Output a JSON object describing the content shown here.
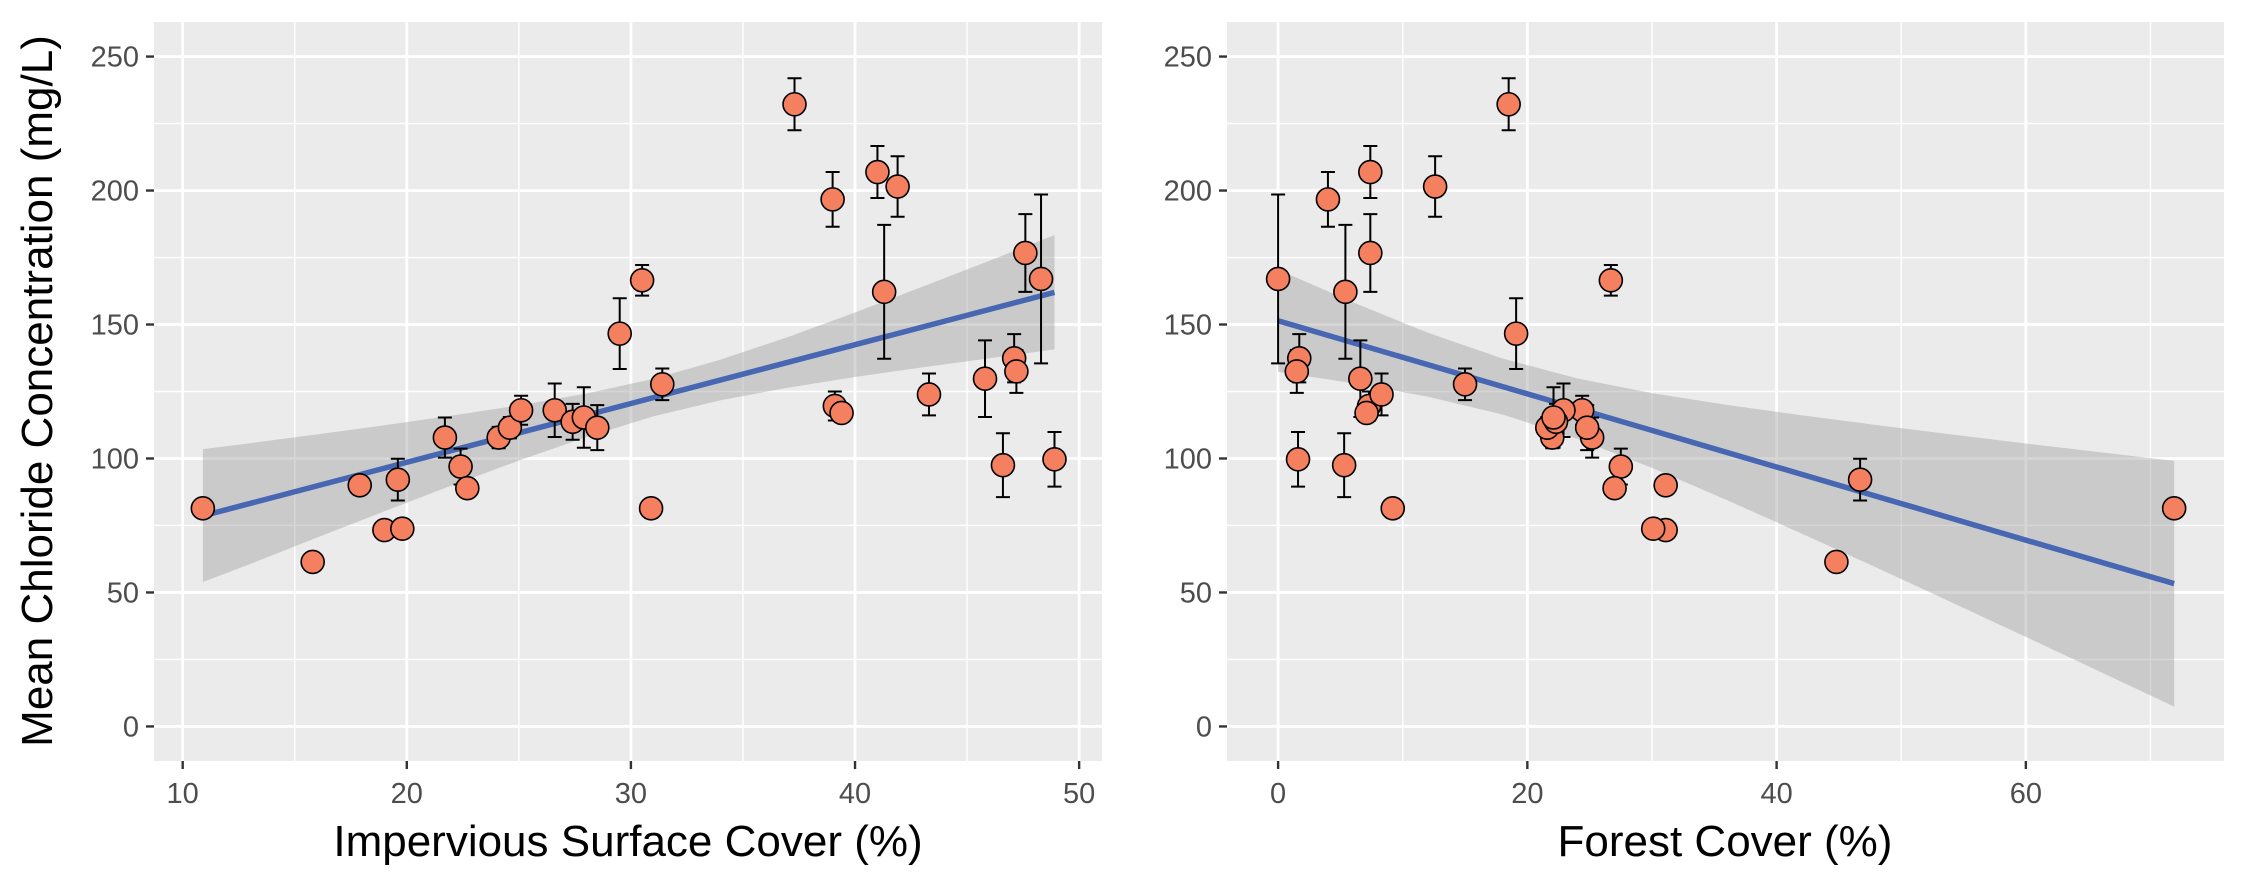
{
  "chart_data": [
    {
      "type": "scatter",
      "xlabel": "Impervious Surface Cover (%)",
      "ylabel": "Mean Chloride Concentration (mg/L)",
      "xlim": [
        8.72,
        51.02
      ],
      "ylim": [
        -12.9,
        262.9
      ],
      "xticks": [
        10,
        20,
        30,
        40,
        50
      ],
      "yticks": [
        0,
        50,
        100,
        150,
        200,
        250
      ],
      "grid": true,
      "points": {
        "x": [
          10.9,
          15.8,
          17.9,
          19.0,
          19.8,
          19.6,
          21.7,
          22.4,
          22.7,
          24.1,
          24.6,
          25.1,
          26.6,
          27.4,
          27.9,
          28.5,
          29.5,
          30.5,
          30.9,
          31.4,
          37.3,
          39.0,
          39.1,
          39.4,
          41.0,
          41.3,
          41.9,
          43.3,
          45.8,
          46.6,
          47.1,
          47.2,
          47.6,
          48.3,
          48.9
        ],
        "y": [
          81.4,
          61.4,
          90.0,
          73.3,
          73.8,
          92.1,
          107.8,
          97.0,
          88.9,
          107.8,
          111.5,
          118.0,
          118.0,
          113.7,
          115.3,
          111.5,
          146.6,
          166.5,
          81.4,
          127.7,
          232.2,
          196.7,
          119.6,
          117.0,
          206.9,
          162.2,
          201.5,
          123.9,
          129.8,
          97.5,
          137.4,
          132.5,
          176.7,
          167.0,
          99.7
        ],
        "yerr": [
          1.5,
          1.0,
          1.5,
          1.0,
          1.5,
          7.8,
          7.5,
          6.7,
          1.5,
          4.0,
          4.0,
          5.4,
          10.0,
          6.7,
          11.3,
          8.4,
          13.2,
          5.7,
          3.5,
          5.9,
          9.7,
          10.2,
          5.4,
          2.0,
          9.7,
          25.0,
          11.3,
          7.8,
          14.3,
          11.9,
          9.0,
          8.0,
          14.5,
          31.5,
          10.2
        ]
      },
      "fit": {
        "x": [
          10.9,
          48.9
        ],
        "y": [
          78.6,
          162.0
        ]
      },
      "band": {
        "x": [
          10.9,
          13,
          16,
          19,
          22,
          25,
          28,
          31,
          34,
          37,
          40,
          43,
          46,
          48.9
        ],
        "lower": [
          53.9,
          60.6,
          70.5,
          80.3,
          89.9,
          99.2,
          108.0,
          115.7,
          121.7,
          126.4,
          130.4,
          134.0,
          137.4,
          140.7
        ],
        "upper": [
          103.5,
          105.7,
          109.0,
          112.4,
          116.0,
          119.8,
          124.2,
          129.7,
          136.9,
          145.3,
          154.5,
          164.1,
          173.8,
          183.4
        ]
      }
    },
    {
      "type": "scatter",
      "xlabel": "Forest Cover (%)",
      "xlim": [
        -4.1,
        75.9
      ],
      "ylim": [
        -12.9,
        262.9
      ],
      "xticks": [
        0,
        20,
        40,
        60
      ],
      "yticks": [
        0,
        50,
        100,
        150,
        200,
        250
      ],
      "grid": true,
      "points": {
        "x": [
          71.9,
          44.8,
          31.1,
          31.1,
          30.1,
          46.7,
          25.2,
          27.5,
          27.0,
          22.0,
          21.6,
          24.4,
          22.9,
          22.3,
          22.1,
          24.8,
          19.1,
          26.7,
          9.2,
          15.0,
          18.5,
          4.0,
          7.3,
          7.1,
          7.4,
          5.4,
          12.6,
          8.3,
          6.6,
          5.3,
          1.7,
          1.5,
          7.4,
          0.0,
          1.6
        ],
        "y": [
          81.4,
          61.4,
          90.0,
          73.3,
          73.8,
          92.1,
          107.8,
          97.0,
          88.9,
          107.8,
          111.5,
          118.0,
          118.0,
          113.7,
          115.3,
          111.5,
          146.6,
          166.5,
          81.4,
          127.7,
          232.2,
          196.7,
          119.6,
          117.0,
          206.9,
          162.2,
          201.5,
          123.9,
          129.8,
          97.5,
          137.4,
          132.5,
          176.7,
          167.0,
          99.7
        ],
        "yerr": [
          1.5,
          1.0,
          1.5,
          1.0,
          1.5,
          7.8,
          7.5,
          6.7,
          1.5,
          4.0,
          4.0,
          5.4,
          10.0,
          6.7,
          11.3,
          8.4,
          13.2,
          5.7,
          3.5,
          5.9,
          9.7,
          10.2,
          5.4,
          2.0,
          9.7,
          25.0,
          11.3,
          7.8,
          14.3,
          11.9,
          9.0,
          8.0,
          14.5,
          31.5,
          10.2
        ]
      },
      "fit": {
        "x": [
          0.0,
          71.9
        ],
        "y": [
          151.4,
          53.3
        ]
      },
      "band": {
        "x": [
          0,
          6,
          12,
          18,
          24,
          30,
          36,
          42,
          48,
          54,
          60,
          66,
          71.9
        ],
        "lower": [
          132.3,
          128.1,
          123.1,
          116.4,
          107.4,
          96.5,
          84.5,
          72.0,
          59.3,
          46.4,
          33.4,
          20.3,
          7.4
        ],
        "upper": [
          170.5,
          158.3,
          147.0,
          137.3,
          129.9,
          124.4,
          120.0,
          116.1,
          112.5,
          109.0,
          105.6,
          102.3,
          99.1
        ]
      }
    }
  ],
  "colors": {
    "panel_background": "#EBEBEB",
    "grid": "#FFFFFF",
    "point_fill": "#F4805F",
    "point_stroke": "#000000",
    "errorbar": "#000000",
    "fit_line": "#4767B3",
    "confidence_band": "#999999",
    "axis_tick": "#333333"
  }
}
